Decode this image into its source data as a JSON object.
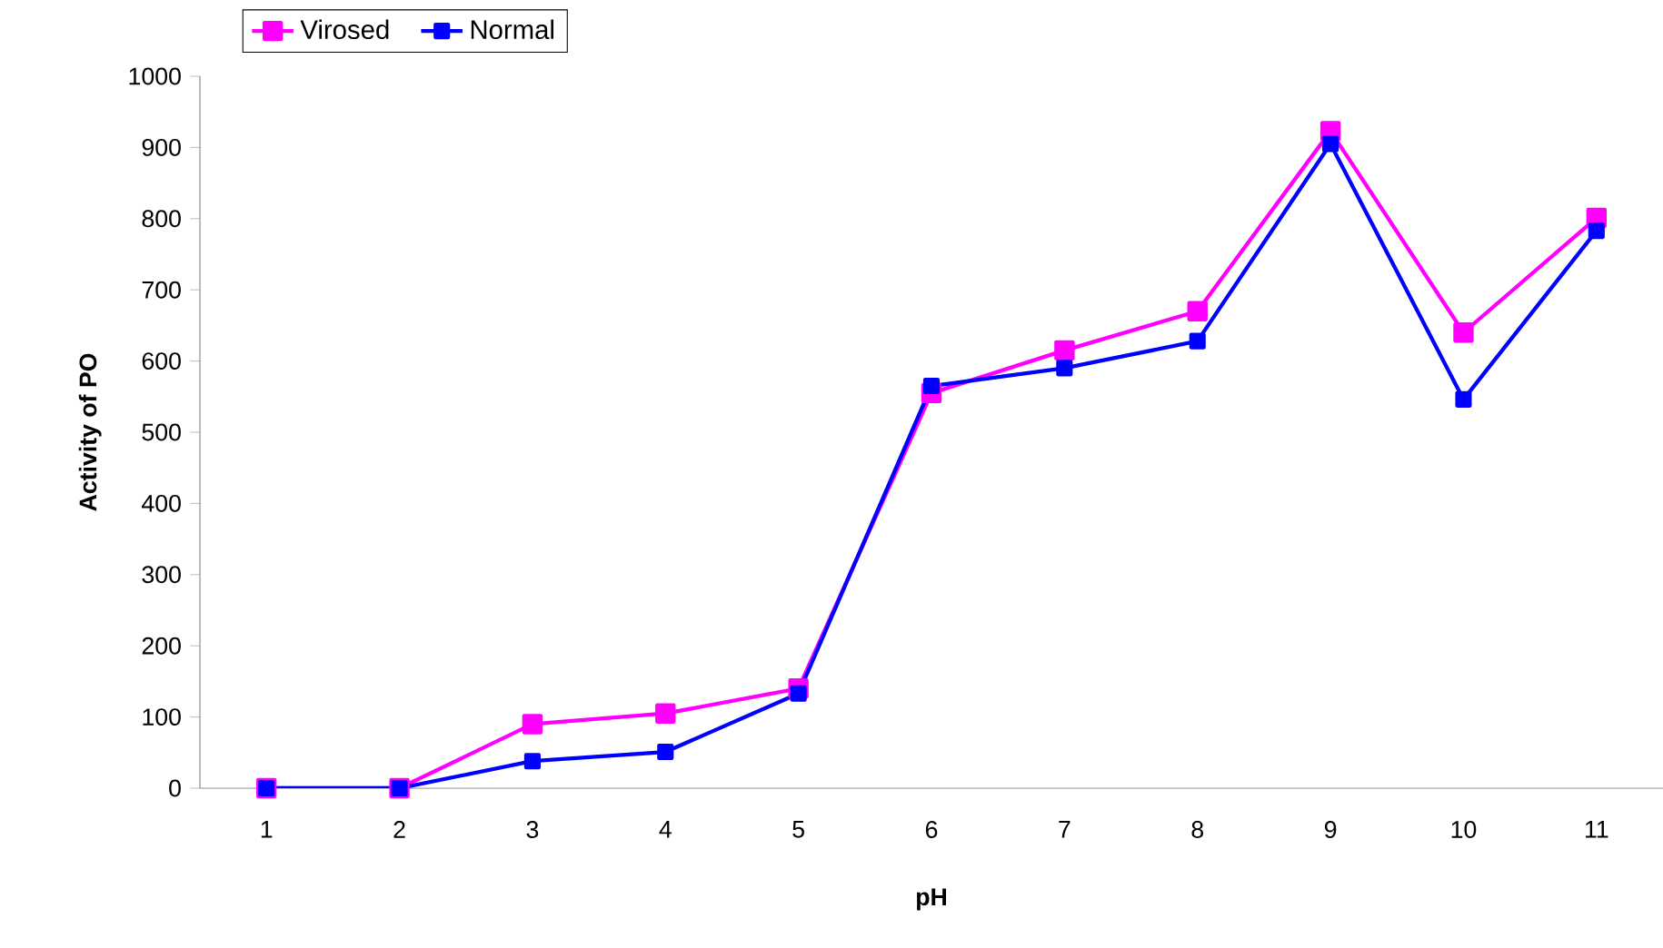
{
  "chart_data": {
    "type": "line",
    "xlabel": "pH",
    "ylabel": "Activity of PO",
    "categories": [
      "1",
      "2",
      "3",
      "4",
      "5",
      "6",
      "7",
      "8",
      "9",
      "10",
      "11"
    ],
    "series": [
      {
        "name": "Virosed",
        "color": "#ff00ff",
        "values": [
          0,
          0,
          90,
          105,
          140,
          555,
          615,
          670,
          923,
          640,
          801
        ]
      },
      {
        "name": "Normal",
        "color": "#0000ff",
        "values": [
          0,
          0,
          38,
          51,
          133,
          565,
          590,
          628,
          905,
          546,
          783
        ]
      }
    ],
    "ylim": [
      0,
      1000
    ],
    "yticks": [
      0,
      100,
      200,
      300,
      400,
      500,
      600,
      700,
      800,
      900,
      1000
    ],
    "grid": false,
    "legend": "top left",
    "marker": "square",
    "line_style": "solid"
  }
}
